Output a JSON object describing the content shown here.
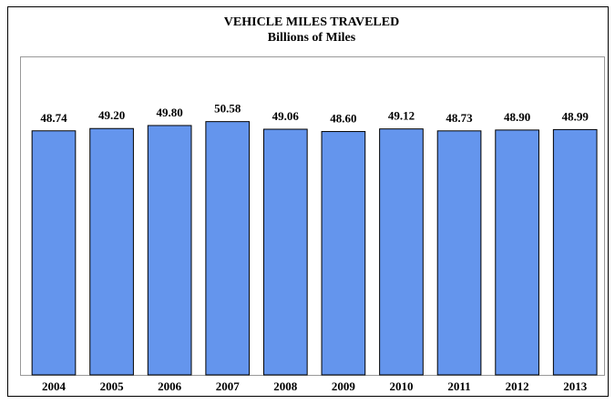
{
  "chart_data": {
    "type": "bar",
    "title": "VEHICLE MILES TRAVELED",
    "subtitle": "Billions of Miles",
    "categories": [
      "2004",
      "2005",
      "2006",
      "2007",
      "2008",
      "2009",
      "2010",
      "2011",
      "2012",
      "2013"
    ],
    "values": [
      48.74,
      49.2,
      49.8,
      50.58,
      49.06,
      48.6,
      49.12,
      48.73,
      48.9,
      48.99
    ],
    "value_labels": [
      "48.74",
      "49.20",
      "49.80",
      "50.58",
      "49.06",
      "48.60",
      "49.12",
      "48.73",
      "48.90",
      "48.99"
    ],
    "color": "#6495ed",
    "ylim": [
      0,
      63.6
    ]
  }
}
